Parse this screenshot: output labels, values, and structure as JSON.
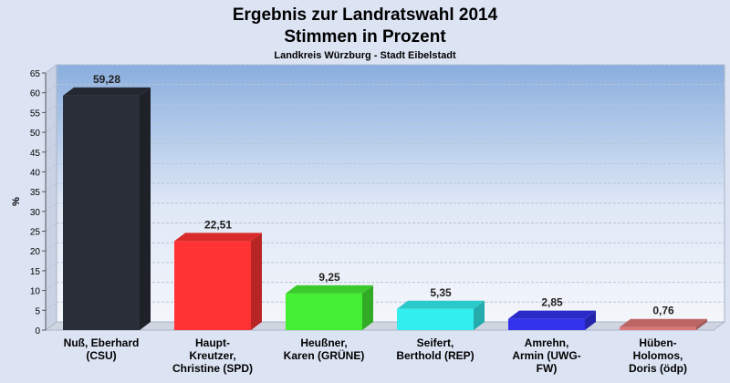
{
  "chart_data": {
    "type": "bar",
    "title": "Ergebnis zur Landratswahl 2014",
    "title_line2": "Stimmen in Prozent",
    "subtitle": "Landkreis Würzburg - Stadt Eibelstadt",
    "ylabel": "%",
    "xlabel": "",
    "ylim": [
      0,
      65
    ],
    "yticks": [
      "0",
      "5",
      "10",
      "15",
      "20",
      "25",
      "30",
      "35",
      "40",
      "45",
      "50",
      "55",
      "60",
      "65"
    ],
    "grid": true,
    "bar_style": "3d",
    "categories": [
      [
        "Nuß, Eberhard",
        "(CSU)"
      ],
      [
        "Haupt-",
        "Kreutzer,",
        "Christine (SPD)"
      ],
      [
        "Heußner,",
        "Karen (GRÜNE)"
      ],
      [
        "Seifert,",
        "Berthold (REP)"
      ],
      [
        "Amrehn,",
        "Armin (UWG-",
        "FW)"
      ],
      [
        "Hüben-",
        "Holomos,",
        "Doris (ödp)"
      ]
    ],
    "values": [
      59.28,
      22.51,
      9.25,
      5.35,
      2.85,
      0.76
    ],
    "value_labels": [
      "59,28",
      "22,51",
      "9,25",
      "5,35",
      "2,85",
      "0,76"
    ],
    "colors": [
      "#2a2e38",
      "#ff3333",
      "#44ee33",
      "#33eeee",
      "#3333ee",
      "#dd7777"
    ]
  }
}
